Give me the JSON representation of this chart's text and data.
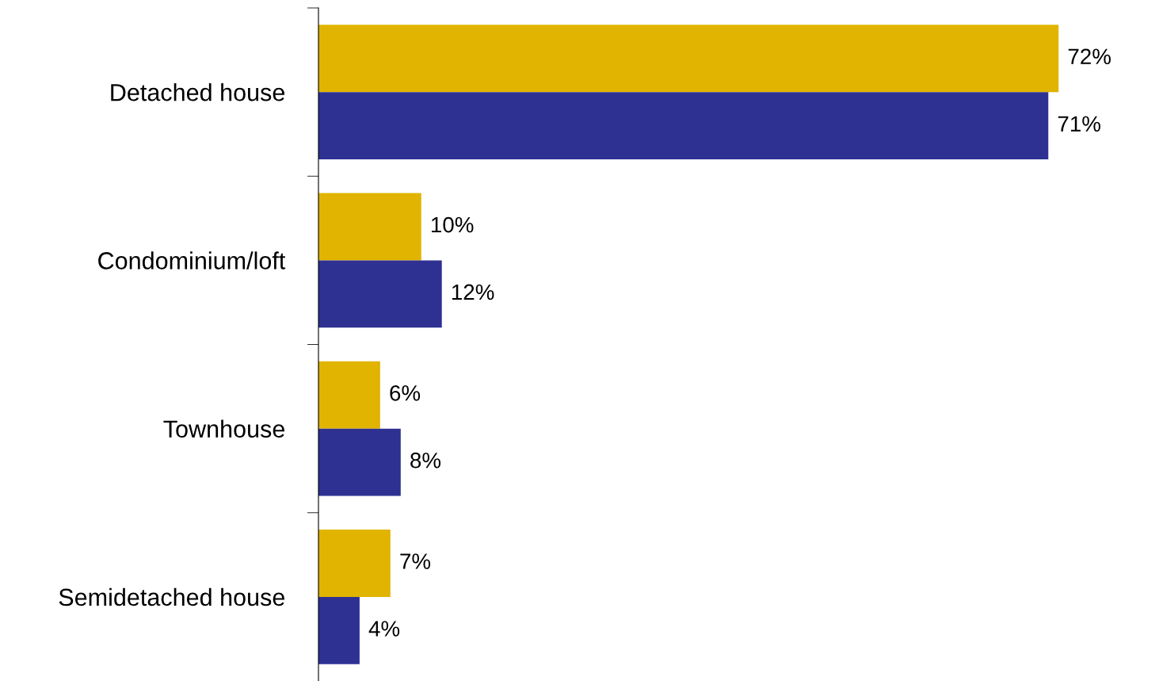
{
  "chart_data": {
    "type": "bar",
    "orientation": "horizontal",
    "categories": [
      "Detached house",
      "Condominium/loft",
      "Townhouse",
      "Semidetached house"
    ],
    "series": [
      {
        "color": "#e0b400",
        "values": [
          72,
          10,
          6,
          7
        ],
        "value_labels": [
          "72%",
          "10%",
          "6%",
          "7%"
        ]
      },
      {
        "color": "#2e3192",
        "values": [
          71,
          12,
          8,
          4
        ],
        "value_labels": [
          "71%",
          "12%",
          "8%",
          "4%"
        ]
      }
    ],
    "tick_labels": "y",
    "grid": false,
    "legend": false
  }
}
